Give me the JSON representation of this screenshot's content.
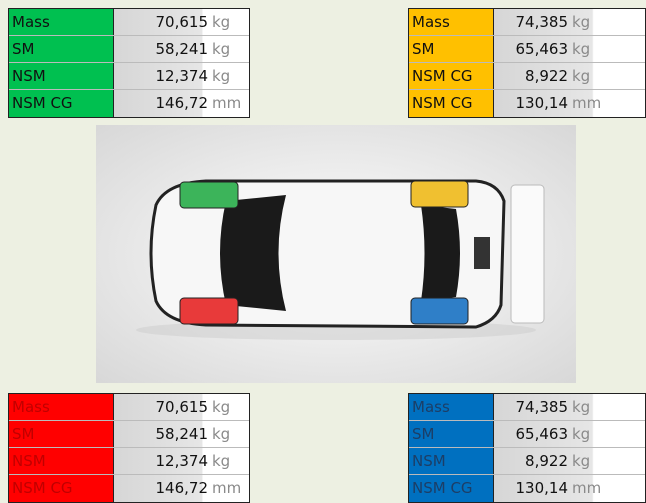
{
  "tables": [
    {
      "rows": [
        {
          "label": "Mass",
          "value": "70,615",
          "unit": "kg"
        },
        {
          "label": "SM",
          "value": "58,241",
          "unit": "kg"
        },
        {
          "label": "NSM",
          "value": "12,374",
          "unit": "kg"
        },
        {
          "label": "NSM CG",
          "value": "146,72",
          "unit": "mm"
        }
      ]
    },
    {
      "rows": [
        {
          "label": "Mass",
          "value": "74,385",
          "unit": "kg"
        },
        {
          "label": "SM",
          "value": "65,463",
          "unit": "kg"
        },
        {
          "label": "NSM CG",
          "value": "8,922",
          "unit": "kg"
        },
        {
          "label": "NSM CG",
          "value": "130,14",
          "unit": "mm"
        }
      ]
    },
    {
      "rows": [
        {
          "label": "Mass",
          "value": "70,615",
          "unit": "kg"
        },
        {
          "label": "SM",
          "value": "58,241",
          "unit": "kg"
        },
        {
          "label": "NSM",
          "value": "12,374",
          "unit": "kg"
        },
        {
          "label": "NSM CG",
          "value": "146,72",
          "unit": "mm"
        }
      ]
    },
    {
      "rows": [
        {
          "label": "Mass",
          "value": "74,385",
          "unit": "kg"
        },
        {
          "label": "SM",
          "value": "65,463",
          "unit": "kg"
        },
        {
          "label": "NSM",
          "value": "8,922",
          "unit": "kg"
        },
        {
          "label": "NSM CG",
          "value": "130,14",
          "unit": "mm"
        }
      ]
    }
  ]
}
